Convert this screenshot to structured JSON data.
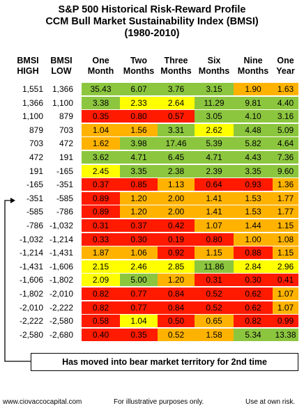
{
  "title": {
    "line1": "S&P 500 Historical Risk-Reward Profile",
    "line2": "CCM Bull Market Sustainability Index (BMSI)",
    "line3": "(1980-2010)"
  },
  "headers": {
    "bmsi_high": [
      "BMSI",
      "HIGH"
    ],
    "bmsi_low": [
      "BMSI",
      "LOW"
    ],
    "periods": [
      [
        "One",
        "Month"
      ],
      [
        "Two",
        "Months"
      ],
      [
        "Three",
        "Months"
      ],
      [
        "Six",
        "Months"
      ],
      [
        "Nine",
        "Months"
      ],
      [
        "One",
        "Year"
      ]
    ]
  },
  "colors": {
    "green": "#8cc63f",
    "yellow": "#ffff00",
    "orange": "#ffb300",
    "red": "#ff1a00"
  },
  "chart_data": {
    "type": "table",
    "columns": [
      "BMSI HIGH",
      "BMSI LOW",
      "One Month",
      "Two Months",
      "Three Months",
      "Six Months",
      "Nine Months",
      "One Year"
    ],
    "rows": [
      {
        "high": "1,551",
        "low": "1,366",
        "values": [
          "35.43",
          "6.07",
          "3.76",
          "3.15",
          "1.90",
          "1.63"
        ],
        "colors": [
          "green",
          "green",
          "green",
          "green",
          "orange",
          "orange"
        ]
      },
      {
        "high": "1,366",
        "low": "1,100",
        "values": [
          "3.38",
          "2.33",
          "2.64",
          "11.29",
          "9.81",
          "4.40"
        ],
        "colors": [
          "green",
          "yellow",
          "yellow",
          "green",
          "green",
          "green"
        ]
      },
      {
        "high": "1,100",
        "low": "879",
        "values": [
          "0.35",
          "0.80",
          "0.57",
          "3.05",
          "4.10",
          "3.16"
        ],
        "colors": [
          "red",
          "red",
          "red",
          "green",
          "green",
          "green"
        ]
      },
      {
        "high": "879",
        "low": "703",
        "values": [
          "1.04",
          "1.56",
          "3.31",
          "2.62",
          "4.48",
          "5.09"
        ],
        "colors": [
          "orange",
          "orange",
          "green",
          "yellow",
          "green",
          "green"
        ]
      },
      {
        "high": "703",
        "low": "472",
        "values": [
          "1.62",
          "3.98",
          "17.46",
          "5.39",
          "5.82",
          "4.64"
        ],
        "colors": [
          "orange",
          "green",
          "green",
          "green",
          "green",
          "green"
        ]
      },
      {
        "high": "472",
        "low": "191",
        "values": [
          "3.62",
          "4.71",
          "6.45",
          "4.71",
          "4.43",
          "7.36"
        ],
        "colors": [
          "green",
          "green",
          "green",
          "green",
          "green",
          "green"
        ]
      },
      {
        "high": "191",
        "low": "-165",
        "values": [
          "2.45",
          "3.35",
          "2.38",
          "2.39",
          "3.35",
          "9.60"
        ],
        "colors": [
          "yellow",
          "green",
          "green",
          "green",
          "green",
          "green"
        ]
      },
      {
        "high": "-165",
        "low": "-351",
        "values": [
          "0.37",
          "0.85",
          "1.13",
          "0.64",
          "0.93",
          "1.36"
        ],
        "colors": [
          "red",
          "red",
          "orange",
          "red",
          "red",
          "orange"
        ]
      },
      {
        "high": "-351",
        "low": "-585",
        "values": [
          "0.89",
          "1.20",
          "2.00",
          "1.41",
          "1.53",
          "1.77"
        ],
        "colors": [
          "red",
          "orange",
          "orange",
          "orange",
          "orange",
          "orange"
        ]
      },
      {
        "high": "-585",
        "low": "-786",
        "values": [
          "0.89",
          "1.20",
          "2.00",
          "1.41",
          "1.53",
          "1.77"
        ],
        "colors": [
          "red",
          "orange",
          "orange",
          "orange",
          "orange",
          "orange"
        ]
      },
      {
        "high": "-786",
        "low": "-1,032",
        "values": [
          "0.31",
          "0.37",
          "0.42",
          "1.07",
          "1.44",
          "1.15"
        ],
        "colors": [
          "red",
          "red",
          "red",
          "orange",
          "orange",
          "orange"
        ]
      },
      {
        "high": "-1,032",
        "low": "-1,214",
        "values": [
          "0.33",
          "0.30",
          "0.19",
          "0.80",
          "1.00",
          "1.08"
        ],
        "colors": [
          "red",
          "red",
          "red",
          "red",
          "orange",
          "orange"
        ]
      },
      {
        "high": "-1,214",
        "low": "-1,431",
        "values": [
          "1.87",
          "1.06",
          "0.92",
          "1.15",
          "0.88",
          "1.15"
        ],
        "colors": [
          "orange",
          "orange",
          "red",
          "orange",
          "red",
          "orange"
        ]
      },
      {
        "high": "-1,431",
        "low": "-1,606",
        "values": [
          "2.15",
          "2.46",
          "2.85",
          "11.86",
          "2.84",
          "2.96"
        ],
        "colors": [
          "yellow",
          "yellow",
          "yellow",
          "green",
          "yellow",
          "yellow"
        ]
      },
      {
        "high": "-1,606",
        "low": "-1,802",
        "values": [
          "2.09",
          "5.00",
          "1.20",
          "0.31",
          "0.30",
          "0.41"
        ],
        "colors": [
          "yellow",
          "green",
          "orange",
          "red",
          "red",
          "red"
        ]
      },
      {
        "high": "-1,802",
        "low": "-2,010",
        "values": [
          "0.82",
          "0.77",
          "0.84",
          "0.52",
          "0.62",
          "1.07"
        ],
        "colors": [
          "red",
          "red",
          "red",
          "red",
          "red",
          "orange"
        ]
      },
      {
        "high": "-2,010",
        "low": "-2,222",
        "values": [
          "0.82",
          "0.77",
          "0.84",
          "0.52",
          "0.62",
          "1.07"
        ],
        "colors": [
          "red",
          "red",
          "red",
          "red",
          "red",
          "orange"
        ]
      },
      {
        "high": "-2,222",
        "low": "-2,580",
        "values": [
          "0.58",
          "1.04",
          "0.50",
          "0.65",
          "0.82",
          "0.99"
        ],
        "colors": [
          "red",
          "yellow",
          "red",
          "orange",
          "red",
          "red"
        ]
      },
      {
        "high": "-2,580",
        "low": "-2,680",
        "values": [
          "0.40",
          "0.35",
          "0.52",
          "1.58",
          "5.34",
          "13.38"
        ],
        "colors": [
          "red",
          "red",
          "orange",
          "orange",
          "green",
          "green"
        ]
      }
    ]
  },
  "annotation": "Has moved into bear market territory for 2nd time",
  "footer": {
    "website": "www.ciovaccocapital.com",
    "note": "For illustrative purposes only.",
    "risk": "Use at own risk."
  }
}
